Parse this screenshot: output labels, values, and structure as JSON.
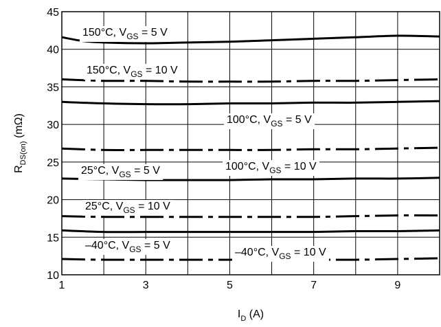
{
  "chart_data": {
    "type": "line",
    "title": "",
    "xlabel": {
      "main": "I",
      "sub": "D",
      "rest": " (A)"
    },
    "ylabel": {
      "main": "R",
      "sub": "DS(on)",
      "rest": " (mΩ)"
    },
    "xlim": [
      1,
      10
    ],
    "ylim": [
      10,
      45
    ],
    "x_ticks": [
      1,
      3,
      5,
      7,
      9
    ],
    "x_tick_labels": [
      "1",
      "3",
      "5",
      "7",
      "9"
    ],
    "x_grid": [
      1,
      2,
      3,
      4,
      5,
      6,
      7,
      8,
      9,
      10
    ],
    "y_ticks": [
      10,
      15,
      20,
      25,
      30,
      35,
      40,
      45
    ],
    "y_tick_labels": [
      "10",
      "15",
      "20",
      "25",
      "30",
      "35",
      "40",
      "45"
    ],
    "grid": true,
    "series": [
      {
        "name": "150°C, V_GS = 5 V",
        "label": {
          "pre": "150°C, V",
          "sub": "GS",
          "post": " = 5 V"
        },
        "style": "solid",
        "x": [
          1,
          1.5,
          2,
          3,
          4,
          5,
          6,
          7,
          8,
          9,
          10
        ],
        "y": [
          41.6,
          41.1,
          40.9,
          40.8,
          40.9,
          41.0,
          41.2,
          41.4,
          41.6,
          41.8,
          41.7
        ]
      },
      {
        "name": "150°C, V_GS = 10 V",
        "label": {
          "pre": "150°C, V",
          "sub": "GS",
          "post": " = 10 V"
        },
        "style": "dashdot",
        "x": [
          1,
          2,
          3,
          4,
          5,
          6,
          7,
          8,
          9,
          10
        ],
        "y": [
          36.0,
          35.8,
          35.8,
          35.7,
          35.7,
          35.7,
          35.8,
          35.8,
          35.9,
          36.0
        ]
      },
      {
        "name": "100°C, V_GS = 5 V",
        "label": {
          "pre": "100°C, V",
          "sub": "GS",
          "post": " = 5 V"
        },
        "style": "solid",
        "x": [
          1,
          2,
          3,
          4,
          5,
          6,
          7,
          8,
          9,
          10
        ],
        "y": [
          33.0,
          32.8,
          32.7,
          32.7,
          32.8,
          32.8,
          32.9,
          32.9,
          33.0,
          33.1
        ]
      },
      {
        "name": "100°C, V_GS = 10 V",
        "label": {
          "pre": "100°C, V",
          "sub": "GS",
          "post": " = 10 V"
        },
        "style": "dashdot",
        "x": [
          1,
          2,
          3,
          4,
          5,
          6,
          7,
          8,
          9,
          10
        ],
        "y": [
          26.8,
          26.6,
          26.6,
          26.6,
          26.6,
          26.6,
          26.7,
          26.7,
          26.8,
          26.9
        ]
      },
      {
        "name": "25°C, V_GS = 5 V",
        "label": {
          "pre": "25°C, V",
          "sub": "GS",
          "post": " = 5 V"
        },
        "style": "solid",
        "x": [
          1,
          2,
          3,
          4,
          5,
          6,
          7,
          8,
          9,
          10
        ],
        "y": [
          22.8,
          22.7,
          22.6,
          22.6,
          22.6,
          22.7,
          22.7,
          22.8,
          22.8,
          22.9
        ]
      },
      {
        "name": "25°C, V_GS = 10 V",
        "label": {
          "pre": "25°C, V",
          "sub": "GS",
          "post": " = 10 V"
        },
        "style": "dashdot",
        "x": [
          1,
          2,
          3,
          4,
          5,
          6,
          7,
          8,
          9,
          10
        ],
        "y": [
          17.8,
          17.7,
          17.7,
          17.7,
          17.7,
          17.7,
          17.7,
          17.8,
          17.9,
          17.9
        ]
      },
      {
        "name": "–40°C, V_GS = 5 V",
        "label": {
          "pre": "–40°C, V",
          "sub": "GS",
          "post": " = 5 V"
        },
        "style": "solid",
        "x": [
          1,
          2,
          3,
          4,
          5,
          6,
          7,
          8,
          9,
          10
        ],
        "y": [
          15.9,
          15.7,
          15.7,
          15.7,
          15.7,
          15.7,
          15.7,
          15.8,
          15.8,
          15.9
        ]
      },
      {
        "name": "–40°C, V_GS = 10 V",
        "label": {
          "pre": "–40°C, V",
          "sub": "GS",
          "post": " = 10 V"
        },
        "style": "dashdot",
        "x": [
          1,
          2,
          3,
          4,
          5,
          6,
          7,
          8,
          9,
          10
        ],
        "y": [
          12.1,
          12.0,
          12.0,
          12.0,
          12.0,
          12.0,
          12.0,
          12.0,
          12.1,
          12.2
        ]
      }
    ]
  }
}
